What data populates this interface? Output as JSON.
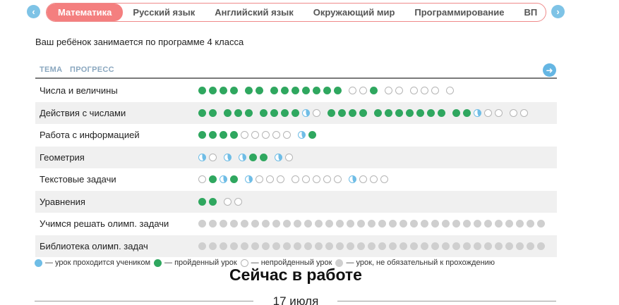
{
  "tabs": [
    {
      "label": "Математика",
      "active": true
    },
    {
      "label": "Русский язык",
      "active": false
    },
    {
      "label": "Английский язык",
      "active": false
    },
    {
      "label": "Окружающий мир",
      "active": false
    },
    {
      "label": "Программирование",
      "active": false
    },
    {
      "label": "ВП",
      "active": false
    }
  ],
  "nav": {
    "prev_icon": "‹",
    "next_icon": "›"
  },
  "program_text": "Ваш ребёнок занимается по программе 4 класса",
  "table_header": {
    "col_topic": "ТЕМА",
    "col_progress": "ПРОГРЕСС",
    "next_icon": "➜"
  },
  "rows": [
    {
      "topic": "Числа и величины",
      "dots": "DDDD_DD_DDDDDDD_EED_EE_EEE_E"
    },
    {
      "topic": "Действия с числами",
      "dots": "DD_DDD_DDDDPE_DDDD_DDDDDDD_DDPEE_EE"
    },
    {
      "topic": "Работа с информацией",
      "dots": "DDDDEEEEE_PD"
    },
    {
      "topic": "Геометрия",
      "dots": "PE_P_PDD_PE"
    },
    {
      "topic": "Текстовые задачи",
      "dots": "EDPD_PEEE_EEEEE_PEEE"
    },
    {
      "topic": "Уравнения",
      "dots": "DD_EE"
    },
    {
      "topic": "Учимся решать олимп. задачи",
      "dots": "OOOOOOOOOOOOOOOOOOOOOOOOOOOOOOOOO"
    },
    {
      "topic": "Библиотека олимп. задач",
      "dots": "OOOOOOOOOOOOOOOOOOOOOOOOOOOOOOOOO"
    }
  ],
  "legend": {
    "in_progress": "— урок проходится учеником",
    "done": "— пройденный урок",
    "not_done": "— непройденный урок",
    "optional": "— урок, не обязательный к прохождению"
  },
  "colors": {
    "accent": "#f47f7f",
    "done": "#2fa75f",
    "in_progress": "#6fbde6",
    "optional": "#cfcfcf"
  },
  "now_title": "Сейчас в работе",
  "date": "17 июля"
}
